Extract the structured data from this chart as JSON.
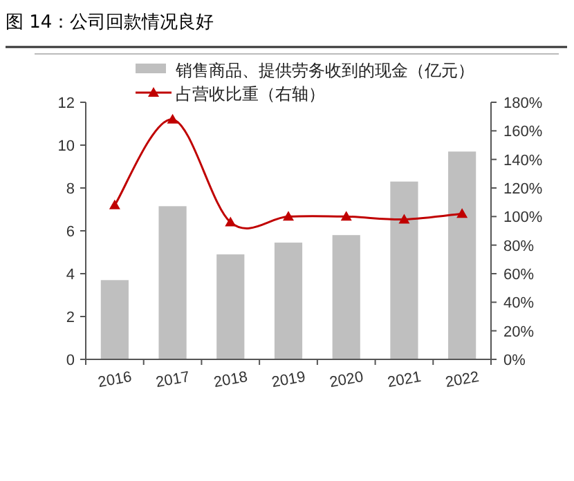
{
  "chart_data": {
    "type": "bar",
    "title": "图 14：公司回款情况良好",
    "categories": [
      "2016",
      "2017",
      "2018",
      "2019",
      "2020",
      "2021",
      "2022"
    ],
    "series": [
      {
        "name": "销售商品、提供劳务收到的现金（亿元）",
        "color": "#bfbfbf",
        "values": [
          3.7,
          7.15,
          4.9,
          5.45,
          5.8,
          8.3,
          9.7
        ]
      },
      {
        "name": "占营收比重（右轴）",
        "type": "line",
        "axis": "y2",
        "color": "#c00000",
        "marker": "triangle",
        "values": [
          108,
          168,
          96,
          100,
          100,
          98,
          102
        ]
      }
    ],
    "ylim": [
      0,
      12
    ],
    "yticks": [
      0,
      2,
      4,
      6,
      8,
      10,
      12
    ],
    "y2lim": [
      0,
      180
    ],
    "y2ticks": [
      {
        "value": 0,
        "label": "0%"
      },
      {
        "value": 20,
        "label": "20%"
      },
      {
        "value": 40,
        "label": "40%"
      },
      {
        "value": 60,
        "label": "60%"
      },
      {
        "value": 80,
        "label": "80%"
      },
      {
        "value": 100,
        "label": "100%"
      },
      {
        "value": 120,
        "label": "120%"
      },
      {
        "value": 140,
        "label": "140%"
      },
      {
        "value": 160,
        "label": "160%"
      },
      {
        "value": 180,
        "label": "180%"
      }
    ],
    "legend": "top",
    "grid": false
  }
}
